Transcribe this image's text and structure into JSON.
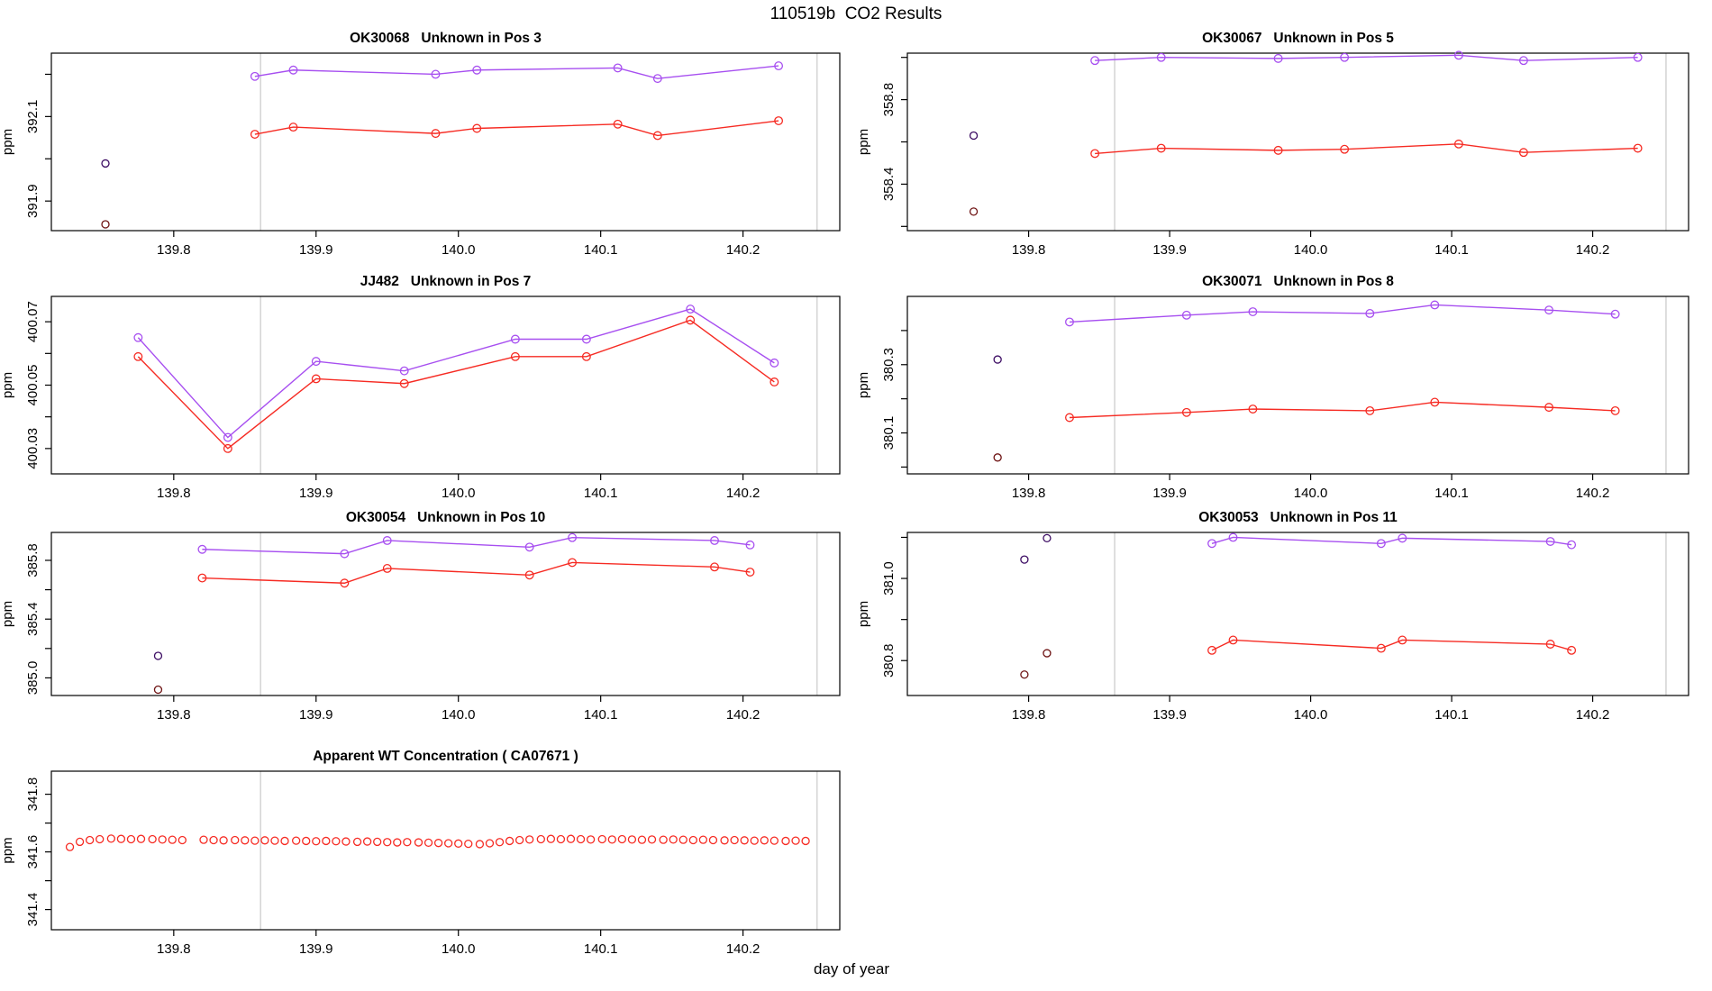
{
  "title": "110519b  CO2 Results",
  "xlabel": "day of year",
  "colors": {
    "purple": "#A74FF0",
    "red": "#F62B23",
    "dark_purple": "#3C0C63",
    "dark_red": "#6E1313",
    "vline": "#D6D6D6",
    "axis": "#000000"
  },
  "x_axis": {
    "range": [
      139.714,
      140.268
    ],
    "ticks": [
      139.8,
      139.9,
      140.0,
      140.1,
      140.2
    ],
    "tick_labels": [
      "139.8",
      "139.9",
      "140.0",
      "140.1",
      "140.2"
    ],
    "vlines": [
      139.861,
      140.252
    ]
  },
  "chart_data": [
    {
      "type": "line",
      "title": "OK30068   Unknown in Pos 3",
      "ylabel": "ppm",
      "position": {
        "row": 0,
        "col": 0
      },
      "ylim": [
        391.83,
        392.25
      ],
      "yticks": [
        391.9,
        392.0,
        392.1,
        392.2
      ],
      "ytick_labels": [
        "391.9",
        "",
        "392.1",
        ""
      ],
      "series": [
        {
          "name": "sample-purple",
          "color": "purple",
          "draw": "line",
          "x": [
            139.857,
            139.884,
            139.984,
            140.013,
            140.112,
            140.14,
            140.225
          ],
          "y": [
            392.195,
            392.21,
            392.2,
            392.21,
            392.215,
            392.19,
            392.22
          ]
        },
        {
          "name": "sample-red",
          "color": "red",
          "draw": "line",
          "x": [
            139.857,
            139.884,
            139.984,
            140.013,
            140.112,
            140.14,
            140.225
          ],
          "y": [
            392.058,
            392.075,
            392.06,
            392.072,
            392.082,
            392.055,
            392.09
          ]
        },
        {
          "name": "initial-purple",
          "color": "dark_purple",
          "draw": "points",
          "x": [
            139.752
          ],
          "y": [
            391.989
          ]
        },
        {
          "name": "initial-red",
          "color": "dark_red",
          "draw": "points",
          "x": [
            139.752
          ],
          "y": [
            391.845
          ]
        }
      ]
    },
    {
      "type": "line",
      "title": "OK30067   Unknown in Pos 5",
      "ylabel": "ppm",
      "position": {
        "row": 0,
        "col": 1
      },
      "ylim": [
        358.18,
        359.02
      ],
      "yticks": [
        358.2,
        358.4,
        358.6,
        358.8,
        359.0
      ],
      "ytick_labels": [
        "",
        "358.4",
        "",
        "358.8",
        ""
      ],
      "series": [
        {
          "name": "sample-purple",
          "color": "purple",
          "draw": "line",
          "x": [
            139.847,
            139.894,
            139.977,
            140.024,
            140.105,
            140.151,
            140.232
          ],
          "y": [
            358.985,
            359.0,
            358.995,
            359.0,
            359.01,
            358.985,
            359.0
          ]
        },
        {
          "name": "sample-red",
          "color": "red",
          "draw": "line",
          "x": [
            139.847,
            139.894,
            139.977,
            140.024,
            140.105,
            140.151,
            140.232
          ],
          "y": [
            358.545,
            358.57,
            358.56,
            358.565,
            358.59,
            358.55,
            358.57
          ]
        },
        {
          "name": "initial-purple",
          "color": "dark_purple",
          "draw": "points",
          "x": [
            139.761
          ],
          "y": [
            358.63
          ]
        },
        {
          "name": "initial-red",
          "color": "dark_red",
          "draw": "points",
          "x": [
            139.761
          ],
          "y": [
            358.27
          ]
        }
      ]
    },
    {
      "type": "line",
      "title": "JJ482   Unknown in Pos 7",
      "ylabel": "ppm",
      "position": {
        "row": 1,
        "col": 0
      },
      "ylim": [
        400.022,
        400.078
      ],
      "yticks": [
        400.03,
        400.04,
        400.05,
        400.06,
        400.07
      ],
      "ytick_labels": [
        "400.03",
        "",
        "400.05",
        "",
        "400.07"
      ],
      "series": [
        {
          "name": "sample-purple",
          "color": "purple",
          "draw": "line",
          "x": [
            139.775,
            139.838,
            139.9,
            139.962,
            140.04,
            140.09,
            140.163,
            140.222
          ],
          "y": [
            400.065,
            400.0335,
            400.0575,
            400.0545,
            400.0645,
            400.0645,
            400.074,
            400.057
          ]
        },
        {
          "name": "sample-red",
          "color": "red",
          "draw": "line",
          "x": [
            139.775,
            139.838,
            139.9,
            139.962,
            140.04,
            140.09,
            140.163,
            140.222
          ],
          "y": [
            400.059,
            400.03,
            400.052,
            400.0505,
            400.059,
            400.059,
            400.0705,
            400.051
          ]
        }
      ]
    },
    {
      "type": "line",
      "title": "OK30071   Unknown in Pos 8",
      "ylabel": "ppm",
      "position": {
        "row": 1,
        "col": 1
      },
      "ylim": [
        379.98,
        380.5
      ],
      "yticks": [
        380.0,
        380.1,
        380.2,
        380.3,
        380.4
      ],
      "ytick_labels": [
        "",
        "380.1",
        "",
        "380.3",
        ""
      ],
      "series": [
        {
          "name": "sample-purple",
          "color": "purple",
          "draw": "line",
          "x": [
            139.829,
            139.912,
            139.959,
            140.042,
            140.088,
            140.169,
            140.216
          ],
          "y": [
            380.425,
            380.445,
            380.455,
            380.45,
            380.475,
            380.46,
            380.448
          ]
        },
        {
          "name": "sample-red",
          "color": "red",
          "draw": "line",
          "x": [
            139.829,
            139.912,
            139.959,
            140.042,
            140.088,
            140.169,
            140.216
          ],
          "y": [
            380.145,
            380.16,
            380.17,
            380.165,
            380.19,
            380.175,
            380.165
          ]
        },
        {
          "name": "initial-purple",
          "color": "dark_purple",
          "draw": "points",
          "x": [
            139.778
          ],
          "y": [
            380.315
          ]
        },
        {
          "name": "initial-red",
          "color": "dark_red",
          "draw": "points",
          "x": [
            139.778
          ],
          "y": [
            380.028
          ]
        }
      ]
    },
    {
      "type": "line",
      "title": "OK30054   Unknown in Pos 10",
      "ylabel": "ppm",
      "position": {
        "row": 2,
        "col": 0
      },
      "ylim": [
        384.88,
        385.99
      ],
      "yticks": [
        385.0,
        385.2,
        385.4,
        385.6,
        385.8
      ],
      "ytick_labels": [
        "385.0",
        "",
        "385.4",
        "",
        "385.8"
      ],
      "series": [
        {
          "name": "sample-purple",
          "color": "purple",
          "draw": "line",
          "x": [
            139.82,
            139.92,
            139.95,
            140.05,
            140.08,
            140.18,
            140.205
          ],
          "y": [
            385.875,
            385.845,
            385.935,
            385.89,
            385.955,
            385.935,
            385.905
          ]
        },
        {
          "name": "sample-red",
          "color": "red",
          "draw": "line",
          "x": [
            139.82,
            139.92,
            139.95,
            140.05,
            140.08,
            140.18,
            140.205
          ],
          "y": [
            385.68,
            385.645,
            385.745,
            385.7,
            385.785,
            385.755,
            385.72
          ]
        },
        {
          "name": "initial-purple",
          "color": "dark_purple",
          "draw": "points",
          "x": [
            139.789
          ],
          "y": [
            385.15
          ]
        },
        {
          "name": "initial-red",
          "color": "dark_red",
          "draw": "points",
          "x": [
            139.789
          ],
          "y": [
            384.92
          ]
        }
      ]
    },
    {
      "type": "line",
      "title": "OK30053   Unknown in Pos 11",
      "ylabel": "ppm",
      "position": {
        "row": 2,
        "col": 1
      },
      "ylim": [
        380.715,
        381.112
      ],
      "yticks": [
        380.8,
        380.9,
        381.0,
        381.1
      ],
      "ytick_labels": [
        "380.8",
        "",
        "381.0",
        ""
      ],
      "series": [
        {
          "name": "sample-purple",
          "color": "purple",
          "draw": "line",
          "x": [
            139.93,
            139.945,
            140.05,
            140.065,
            140.17,
            140.185
          ],
          "y": [
            381.085,
            381.1,
            381.085,
            381.098,
            381.09,
            381.082
          ]
        },
        {
          "name": "sample-red",
          "color": "red",
          "draw": "line",
          "x": [
            139.93,
            139.945,
            140.05,
            140.065,
            140.17,
            140.185
          ],
          "y": [
            380.825,
            380.85,
            380.83,
            380.85,
            380.84,
            380.825
          ]
        },
        {
          "name": "initial-purple",
          "color": "dark_purple",
          "draw": "points",
          "x": [
            139.813,
            139.797
          ],
          "y": [
            381.098,
            381.046
          ]
        },
        {
          "name": "initial-red",
          "color": "dark_red",
          "draw": "points",
          "x": [
            139.813,
            139.797
          ],
          "y": [
            380.818,
            380.766
          ]
        }
      ]
    },
    {
      "type": "scatter",
      "title": "Apparent WT Concentration ( CA07671 )",
      "ylabel": "ppm",
      "position": {
        "row": 3,
        "col": 0
      },
      "ylim": [
        341.33,
        341.88
      ],
      "yticks": [
        341.4,
        341.5,
        341.6,
        341.7,
        341.8
      ],
      "ytick_labels": [
        "341.4",
        "",
        "341.6",
        "",
        "341.8"
      ],
      "series": [
        {
          "name": "wt-red",
          "color": "red",
          "draw": "points",
          "x": [
            139.727,
            139.734,
            139.741,
            139.748,
            139.756,
            139.763,
            139.77,
            139.777,
            139.785,
            139.792,
            139.799,
            139.806,
            139.821,
            139.828,
            139.835,
            139.843,
            139.85,
            139.857,
            139.864,
            139.871,
            139.878,
            139.886,
            139.893,
            139.9,
            139.907,
            139.914,
            139.921,
            139.929,
            139.936,
            139.943,
            139.95,
            139.957,
            139.964,
            139.972,
            139.979,
            139.986,
            139.993,
            140.0,
            140.007,
            140.015,
            140.022,
            140.029,
            140.036,
            140.043,
            140.05,
            140.058,
            140.065,
            140.072,
            140.079,
            140.086,
            140.093,
            140.101,
            140.108,
            140.115,
            140.122,
            140.129,
            140.136,
            140.144,
            140.151,
            140.158,
            140.165,
            140.172,
            140.179,
            140.187,
            140.194,
            140.201,
            140.208,
            140.215,
            140.222,
            140.23,
            140.237,
            140.244
          ],
          "y": [
            341.617,
            341.635,
            341.641,
            341.644,
            341.646,
            341.645,
            341.644,
            341.645,
            341.644,
            341.643,
            341.642,
            341.641,
            341.642,
            341.641,
            341.64,
            341.641,
            341.64,
            341.639,
            341.64,
            341.639,
            341.638,
            341.639,
            341.638,
            341.637,
            341.638,
            341.637,
            341.636,
            341.635,
            341.636,
            341.635,
            341.634,
            341.633,
            341.634,
            341.633,
            341.632,
            341.631,
            341.63,
            341.629,
            341.628,
            341.627,
            341.63,
            341.634,
            341.638,
            341.641,
            341.643,
            341.644,
            341.645,
            341.644,
            341.645,
            341.644,
            341.643,
            341.644,
            341.643,
            341.644,
            341.643,
            341.642,
            341.643,
            341.642,
            341.643,
            341.642,
            341.641,
            341.642,
            341.641,
            341.64,
            341.641,
            341.64,
            341.639,
            341.64,
            341.639,
            341.638,
            341.639,
            341.638
          ]
        }
      ]
    }
  ]
}
